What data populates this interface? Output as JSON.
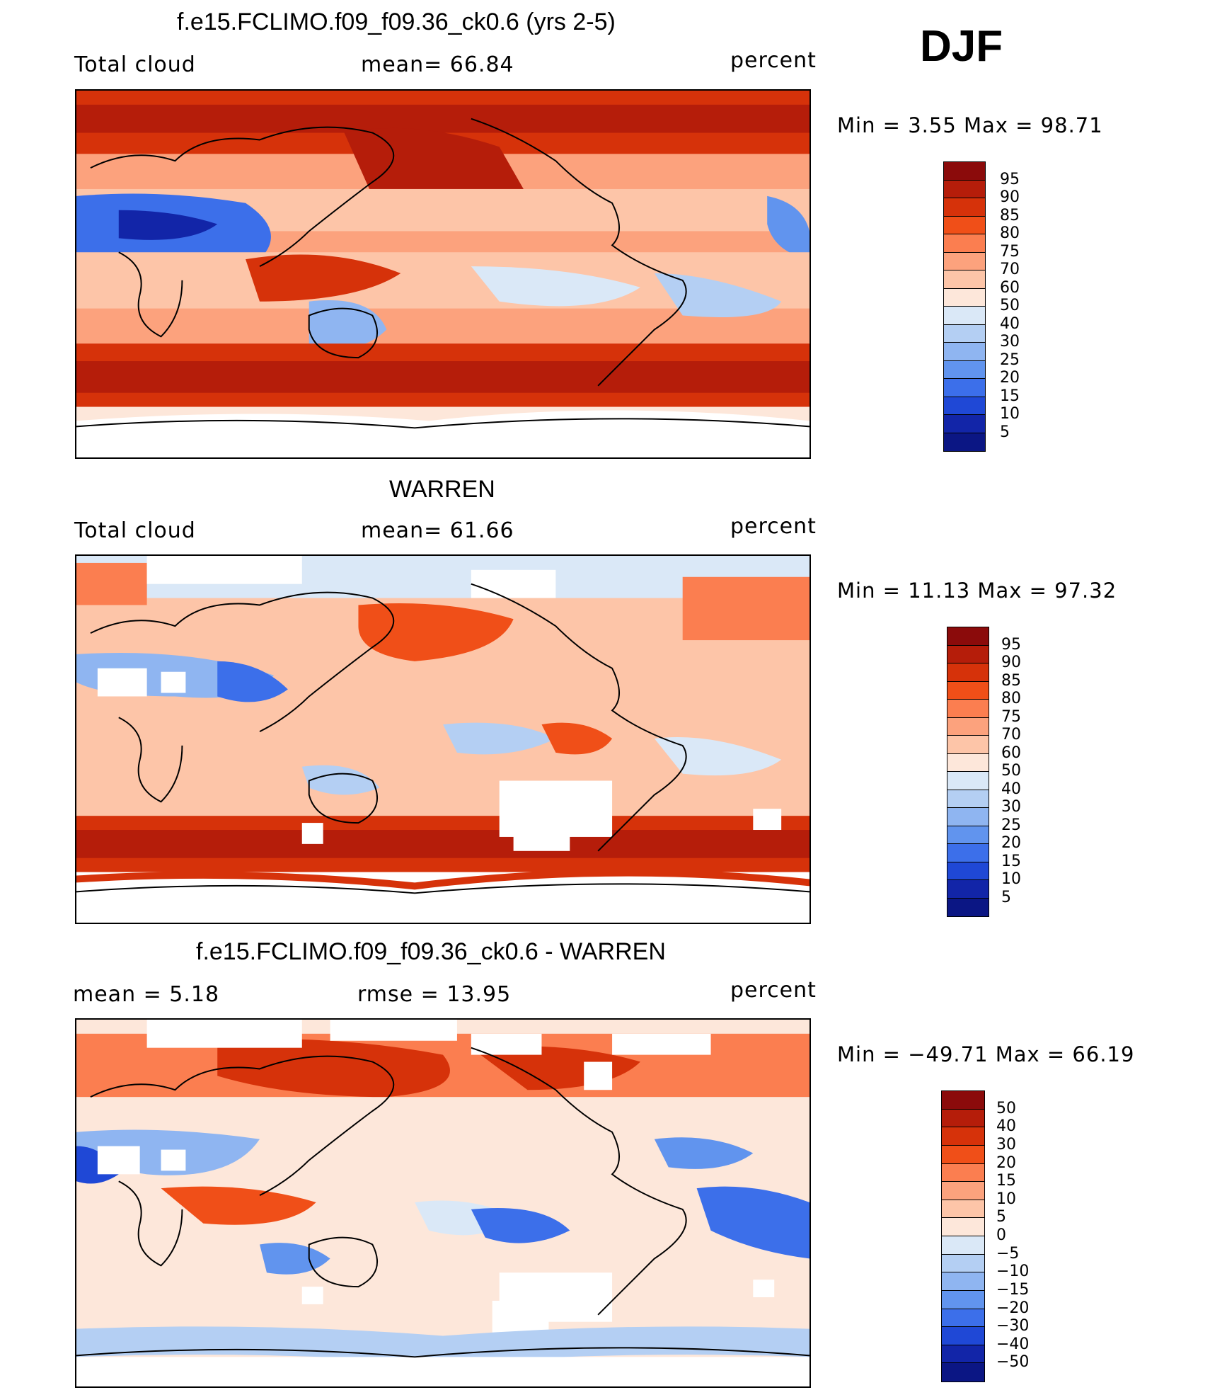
{
  "season": "DJF",
  "panels": [
    {
      "title": "f.e15.FCLIMO.f09_f09.36_ck0.6 (yrs 2-5)",
      "left_label": "Total cloud",
      "center_label": "mean=   66.84",
      "right_label": "percent",
      "minmax": "Min =    3.55 Max =   98.71",
      "colorbar": {
        "labels": [
          "95",
          "90",
          "85",
          "80",
          "75",
          "70",
          "60",
          "50",
          "40",
          "30",
          "25",
          "20",
          "15",
          "10",
          "5"
        ],
        "colors": [
          "#8b0b0b",
          "#b51d0a",
          "#d6320a",
          "#f04f18",
          "#fb7e50",
          "#fca27d",
          "#fdc5a8",
          "#fde7da",
          "#dae8f7",
          "#b4cff3",
          "#8fb5f1",
          "#6194ee",
          "#3c6fea",
          "#1f48d6",
          "#1225a8",
          "#0b1684"
        ]
      }
    },
    {
      "title": "WARREN",
      "left_label": "Total cloud",
      "center_label": "mean=   61.66",
      "right_label": "percent",
      "minmax": "Min =  11.13 Max =   97.32",
      "colorbar": {
        "labels": [
          "95",
          "90",
          "85",
          "80",
          "75",
          "70",
          "60",
          "50",
          "40",
          "30",
          "25",
          "20",
          "15",
          "10",
          "5"
        ],
        "colors": [
          "#8b0b0b",
          "#b51d0a",
          "#d6320a",
          "#f04f18",
          "#fb7e50",
          "#fca27d",
          "#fdc5a8",
          "#fde7da",
          "#dae8f7",
          "#b4cff3",
          "#8fb5f1",
          "#6194ee",
          "#3c6fea",
          "#1f48d6",
          "#1225a8",
          "#0b1684"
        ]
      }
    },
    {
      "title": "f.e15.FCLIMO.f09_f09.36_ck0.6 - WARREN",
      "left_label": "mean =    5.18",
      "center_label": "rmse =   13.95",
      "right_label": "percent",
      "minmax": "Min = −49.71 Max =   66.19",
      "colorbar": {
        "labels": [
          "50",
          "40",
          "30",
          "20",
          "15",
          "10",
          "5",
          "0",
          "−5",
          "−10",
          "−15",
          "−20",
          "−30",
          "−40",
          "−50"
        ],
        "colors": [
          "#8b0b0b",
          "#b51d0a",
          "#d6320a",
          "#f04f18",
          "#fb7e50",
          "#fca27d",
          "#fdc5a8",
          "#fde7da",
          "#dae8f7",
          "#b4cff3",
          "#8fb5f1",
          "#6194ee",
          "#3c6fea",
          "#1f48d6",
          "#1225a8",
          "#0b1684"
        ]
      }
    }
  ]
}
